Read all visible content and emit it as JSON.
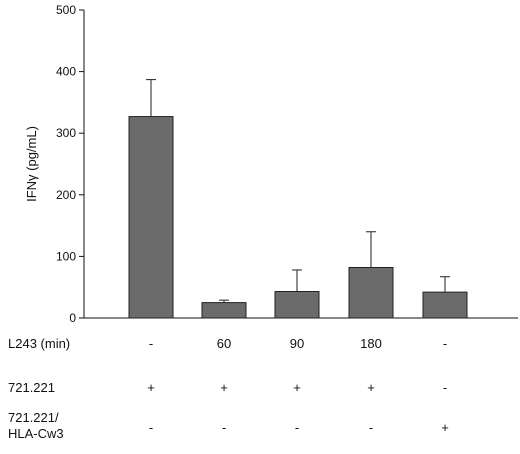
{
  "chart_data": {
    "type": "bar",
    "title": "",
    "ylabel": "IFNγ (pg/mL)",
    "xlabel": "",
    "ylim": [
      0,
      500
    ],
    "yticks": [
      0,
      100,
      200,
      300,
      400,
      500
    ],
    "values": [
      327,
      25,
      43,
      82,
      42
    ],
    "errors": [
      60,
      4,
      35,
      58,
      25
    ],
    "bar_color": "#6b6b6b",
    "conditions": [
      {
        "label": "L243 (min)",
        "values": [
          "-",
          "60",
          "90",
          "180",
          "-"
        ]
      },
      {
        "label": "721.221",
        "values": [
          "+",
          "+",
          "+",
          "+",
          "-"
        ]
      },
      {
        "label": "721.221/\nHLA-Cw3",
        "values": [
          "-",
          "-",
          "-",
          "-",
          "+"
        ]
      }
    ]
  }
}
